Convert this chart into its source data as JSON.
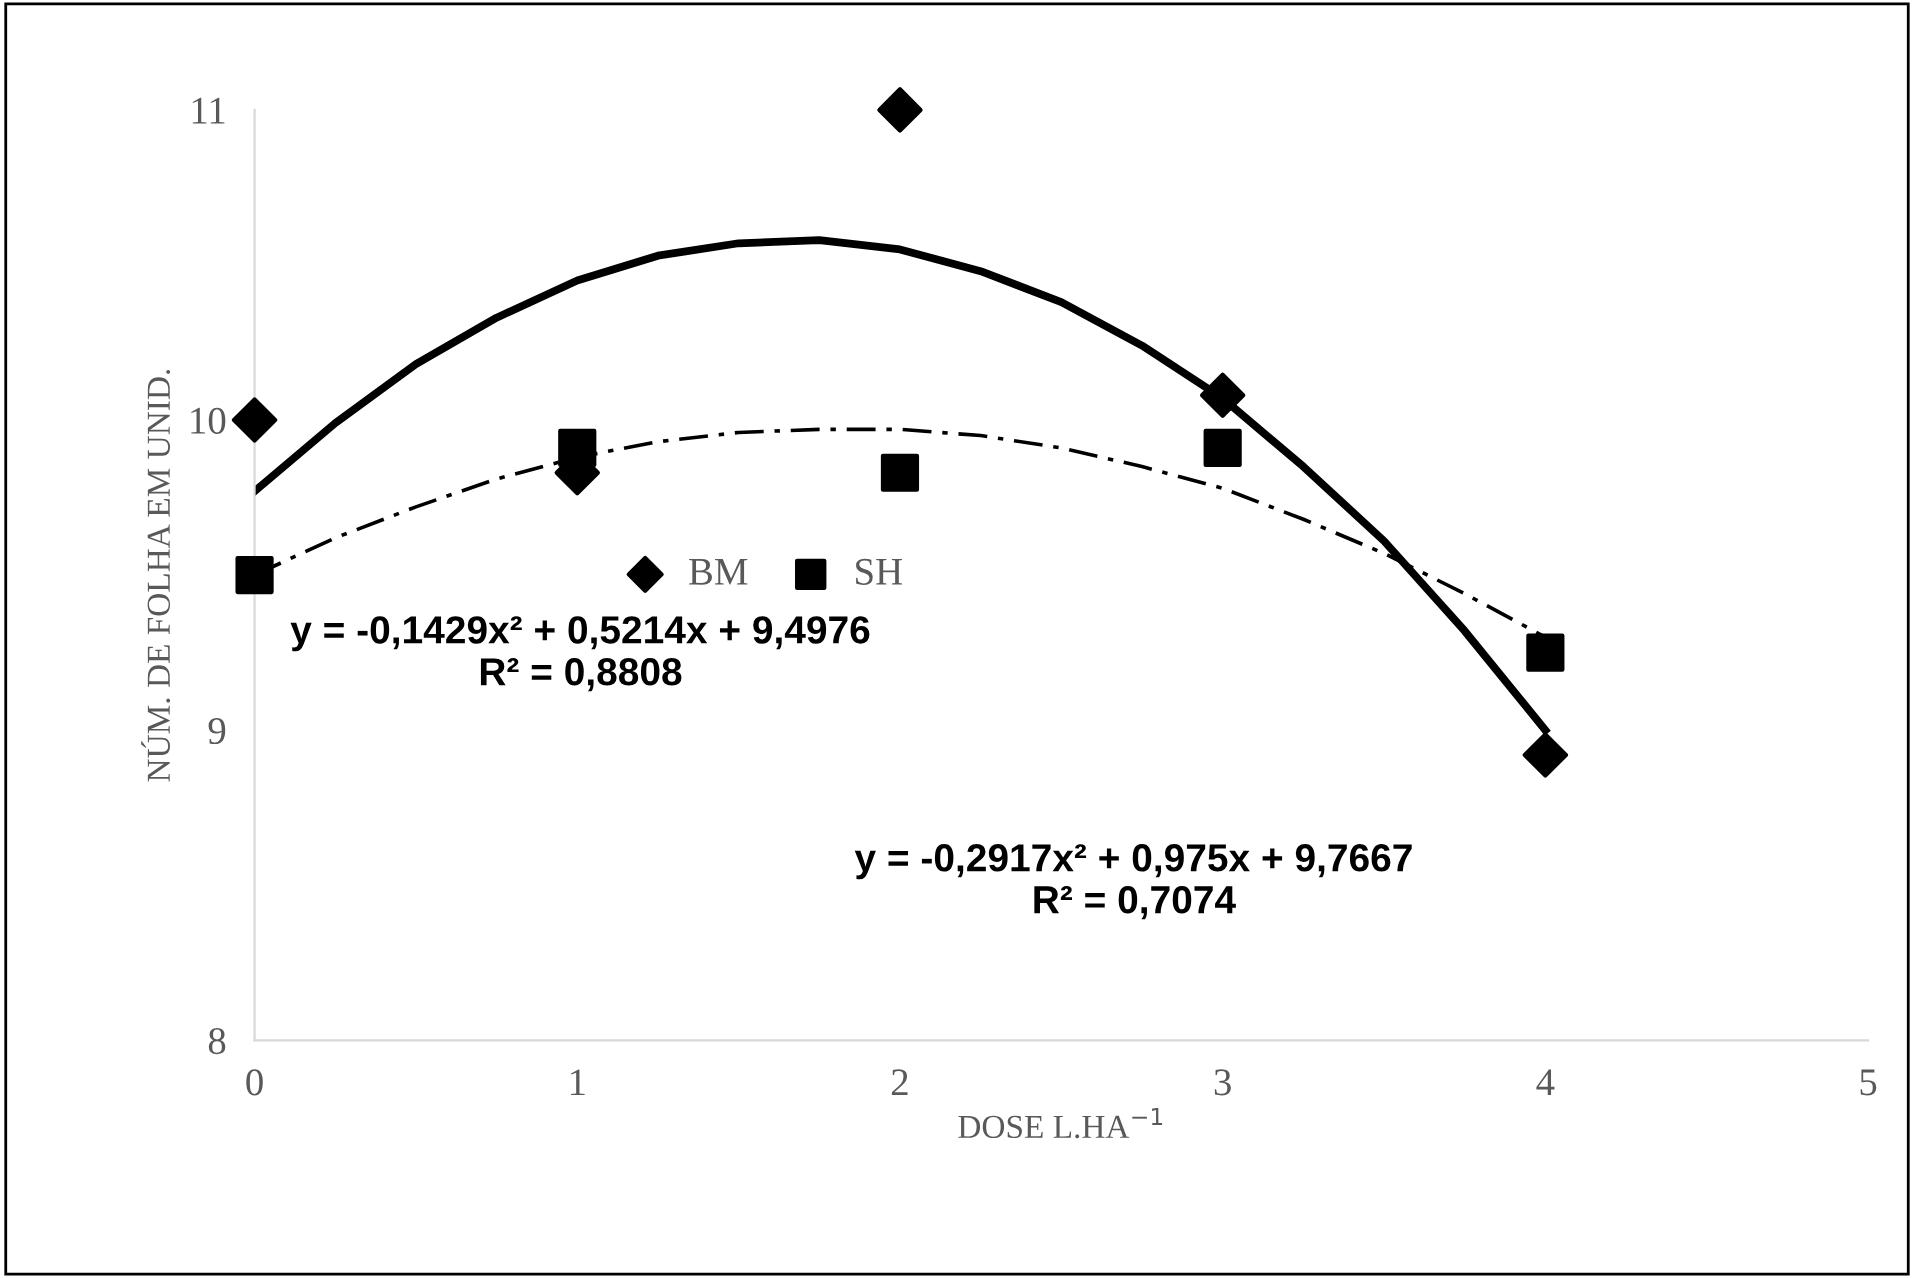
{
  "chart_data": {
    "type": "scatter",
    "xlabel": "DOSE L.HA$^{−1}$",
    "ylabel": "NÚM. DE FOLHA EM UNID.",
    "xlim": [
      0,
      5
    ],
    "ylim": [
      8,
      11
    ],
    "xticks": [
      0,
      1,
      2,
      3,
      4,
      5
    ],
    "yticks": [
      8,
      9,
      10,
      11
    ],
    "grid": false,
    "legend": "center left",
    "series": [
      {
        "name": "BM",
        "marker": "diamond",
        "color": "#000000",
        "x": [
          0,
          1,
          2,
          3,
          4
        ],
        "values": [
          10.0,
          9.83,
          11.0,
          10.08,
          8.92
        ]
      },
      {
        "name": "SH",
        "marker": "square",
        "color": "#000000",
        "x": [
          0,
          1,
          2,
          3,
          4
        ],
        "values": [
          9.5,
          9.91,
          9.83,
          9.91,
          9.25
        ]
      },
      {
        "type": "line",
        "line_style": "solid",
        "color": "#000000",
        "x": [
          0,
          0.25,
          0.5,
          0.75,
          1,
          1.25,
          1.5,
          1.75,
          2,
          2.25,
          2.5,
          2.75,
          3,
          3.25,
          3.5,
          3.75,
          4
        ],
        "values": [
          9.77,
          9.99,
          10.18,
          10.33,
          10.45,
          10.53,
          10.57,
          10.58,
          10.55,
          10.48,
          10.38,
          10.24,
          10.07,
          9.85,
          9.61,
          9.32,
          9.0
        ]
      },
      {
        "type": "line",
        "line_style": "dashdot",
        "color": "#000000",
        "x": [
          0,
          0.25,
          0.5,
          0.75,
          1,
          1.25,
          1.5,
          1.75,
          2,
          2.25,
          2.5,
          2.75,
          3,
          3.25,
          3.5,
          3.75,
          4
        ],
        "values": [
          9.5,
          9.62,
          9.72,
          9.81,
          9.88,
          9.93,
          9.96,
          9.97,
          9.97,
          9.95,
          9.91,
          9.85,
          9.78,
          9.68,
          9.57,
          9.44,
          9.3
        ]
      }
    ],
    "annotations": [
      "y = -0,1429x² + 0,5214x + 9,4976\nR² = 0,8808",
      "y = -0,2917x² + 0,975x + 9,7667\nR² = 0,7074"
    ]
  }
}
